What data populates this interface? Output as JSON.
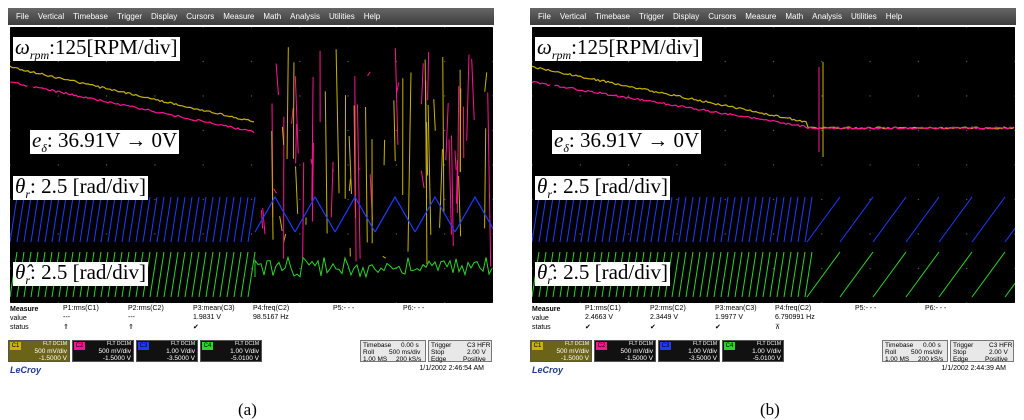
{
  "menu": [
    "File",
    "Vertical",
    "Timebase",
    "Trigger",
    "Display",
    "Cursors",
    "Measure",
    "Math",
    "Analysis",
    "Utilities",
    "Help"
  ],
  "annotations": {
    "omega_symbol": "ω",
    "omega_sub": "rpm",
    "omega_text": ":125[RPM/div]",
    "es_symbol": "e",
    "es_sub": "δ",
    "es_text": ": 36.91V → 0V",
    "theta_symbol": "θ",
    "theta_sub": "r",
    "theta_text": ": 2.5 [rad/div]",
    "thetahat_symbol": "θ̂",
    "thetahat_sub": "r",
    "thetahat_text": ": 2.5 [rad/div]"
  },
  "measure_labels": {
    "title": "Measure",
    "value": "value",
    "status": "status"
  },
  "channel_tags": [
    "C1",
    "C2",
    "C3",
    "C4"
  ],
  "channel_colors": [
    "#c8b400",
    "#ff1493",
    "#1e3cff",
    "#2ad62a"
  ],
  "panels": [
    {
      "caption": "(a)",
      "params": [
        {
          "name": "P1:rms(C1)",
          "value": "---",
          "status": "⇑"
        },
        {
          "name": "P2:rms(C2)",
          "value": "---",
          "status": "⇑"
        },
        {
          "name": "P3:mean(C3)",
          "value": "1.9831 V",
          "status": "✔"
        },
        {
          "name": "P4:freq(C2)",
          "value": "98.5167 Hz",
          "status": ""
        },
        {
          "name": "P5:- - -",
          "value": "",
          "status": ""
        },
        {
          "name": "P6:- - -",
          "value": "",
          "status": ""
        }
      ],
      "channels": [
        {
          "tag": "C1",
          "mode": "FLT DC1M",
          "vdiv": "500 mV/div",
          "offset": "-1.5000 V"
        },
        {
          "tag": "C2",
          "mode": "FLT DC1M",
          "vdiv": "500 mV/div",
          "offset": "-1.5000 V"
        },
        {
          "tag": "C3",
          "mode": "FLT DC1M",
          "vdiv": "1.00 V/div",
          "offset": "-3.5000 V"
        },
        {
          "tag": "C4",
          "mode": "FLT DC1M",
          "vdiv": "1.00 V/div",
          "offset": "-5.0100 V"
        }
      ],
      "timebase": {
        "label": "Timebase",
        "delay": "0.00 s",
        "mode": "Roll",
        "tdiv": "500 ms/div",
        "samples": "1.00 MS",
        "rate": "200 kS/s"
      },
      "trigger": {
        "label": "Trigger",
        "tag": "C3 HFR",
        "mode": "Stop",
        "level": "2.00 V",
        "type": "Edge",
        "slope": "Positive"
      },
      "brand": "LeCroy",
      "datetime": "1/1/2002 2:46:54 AM"
    },
    {
      "caption": "(b)",
      "params": [
        {
          "name": "P1:rms(C1)",
          "value": "2.4663 V",
          "status": "✔"
        },
        {
          "name": "P2:rms(C2)",
          "value": "2.3449 V",
          "status": "✔"
        },
        {
          "name": "P3:mean(C3)",
          "value": "1.9977 V",
          "status": "✔"
        },
        {
          "name": "P4:freq(C2)",
          "value": "6.790991 Hz",
          "status": "⊼"
        },
        {
          "name": "P5:- - -",
          "value": "",
          "status": ""
        },
        {
          "name": "P6:- - -",
          "value": "",
          "status": ""
        }
      ],
      "channels": [
        {
          "tag": "C1",
          "mode": "FLT DC1M",
          "vdiv": "500 mV/div",
          "offset": "-1.5000 V"
        },
        {
          "tag": "C2",
          "mode": "FLT DC1M",
          "vdiv": "500 mV/div",
          "offset": "-1.5000 V"
        },
        {
          "tag": "C3",
          "mode": "FLT DC1M",
          "vdiv": "1.00 V/div",
          "offset": "-3.5000 V"
        },
        {
          "tag": "C4",
          "mode": "FLT DC1M",
          "vdiv": "1.00 V/div",
          "offset": "-5.0100 V"
        }
      ],
      "timebase": {
        "label": "Timebase",
        "delay": "0.00 s",
        "mode": "Roll",
        "tdiv": "500 ms/div",
        "samples": "1.00 MS",
        "rate": "200 kS/s"
      },
      "trigger": {
        "label": "Trigger",
        "tag": "C3 HFR",
        "mode": "Stop",
        "level": "2.00 V",
        "type": "Edge",
        "slope": "Positive"
      },
      "brand": "LeCroy",
      "datetime": "1/1/2002 2:44:39 AM"
    }
  ]
}
